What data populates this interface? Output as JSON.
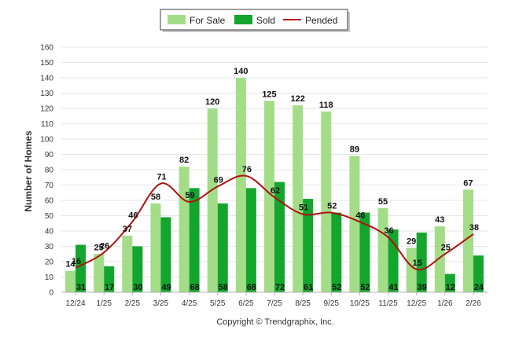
{
  "chart_data": {
    "type": "bar",
    "title": "",
    "xlabel": "",
    "ylabel": "Number of Homes",
    "ylim": [
      0,
      160
    ],
    "yticks": [
      0,
      10,
      20,
      30,
      40,
      50,
      60,
      70,
      80,
      90,
      100,
      110,
      120,
      130,
      140,
      150,
      160
    ],
    "grid": true,
    "legend_position": "top-center",
    "categories": [
      "12/24",
      "1/25",
      "2/25",
      "3/25",
      "4/25",
      "5/25",
      "6/25",
      "7/25",
      "8/25",
      "9/25",
      "10/25",
      "11/25",
      "12/25",
      "1/26",
      "2/26"
    ],
    "series": [
      {
        "name": "For Sale",
        "type": "bar",
        "color": "#a3dd88",
        "values": [
          14,
          25,
          37,
          58,
          82,
          120,
          140,
          125,
          122,
          118,
          89,
          55,
          29,
          43,
          67
        ]
      },
      {
        "name": "Sold",
        "type": "bar",
        "color": "#14a52e",
        "values": [
          31,
          17,
          30,
          49,
          68,
          58,
          68,
          72,
          61,
          52,
          52,
          41,
          39,
          12,
          24
        ]
      },
      {
        "name": "Pended",
        "type": "line",
        "color": "#b01010",
        "values": [
          16,
          26,
          46,
          71,
          59,
          69,
          76,
          62,
          51,
          52,
          46,
          36,
          15,
          25,
          38
        ]
      }
    ],
    "credit": "Copyright © Trendgraphix, Inc."
  }
}
